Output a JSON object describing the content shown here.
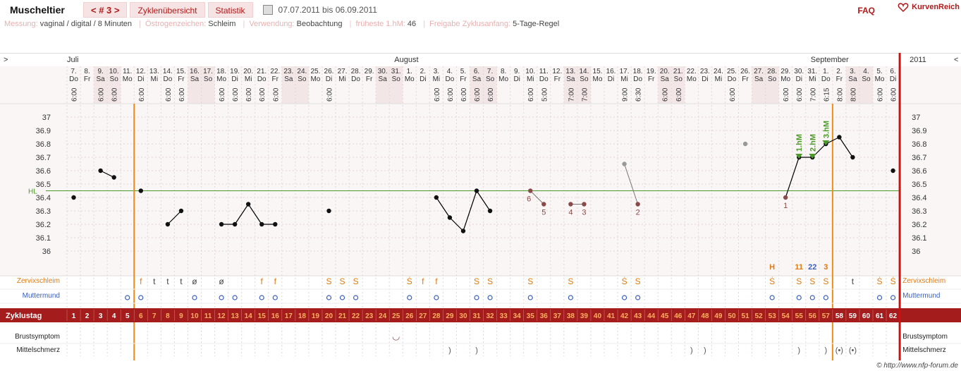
{
  "topbar": {
    "title": "Muscheltier",
    "cycle_label": "< # 3 >",
    "tab_overview": "Zyklenübersicht",
    "tab_stats": "Statistik",
    "date_range": "07.07.2011 bis 06.09.2011",
    "faq": "FAQ",
    "logo": "KurvenReich"
  },
  "info": {
    "messung_label": "Messung:",
    "messung": "vaginal / digital / 8 Minuten",
    "oestrogen_label": "Östrogenzeichen:",
    "oestrogen": "Schleim",
    "verwendung_label": "Verwendung:",
    "verwendung": "Beobachtung",
    "hm_label": "früheste 1.hM:",
    "hm": "46",
    "freigabe_label": "Freigabe Zyklusanfang:",
    "freigabe": "5-Tage-Regel"
  },
  "labels": {
    "nav_left": ">",
    "nav_right": "<",
    "year": "2011",
    "hl": "HL",
    "zervix": "Zervixschleim",
    "muttermund": "Muttermund",
    "zyklustag": "Zyklustag",
    "brust": "Brustsymptom",
    "mittel": "Mittelschmerz",
    "copyright": "© http://www.nfp-forum.de"
  },
  "months": [
    {
      "name": "Juli",
      "day_index": 0
    },
    {
      "name": "August",
      "day_index": 25
    },
    {
      "name": "September",
      "day_index": 56
    }
  ],
  "colors": {
    "accent": "#b01a1a",
    "weekend": "#f3e6e6",
    "coverline": "#4c9a2a",
    "cycle_marker": "#f08a1a",
    "month_end": "#cc1111",
    "zyklustag_bar": "#a51c1c",
    "grid": "#e0d6d6",
    "point": "#111111",
    "excluded_point": "#8a4a4a"
  },
  "chart_data": {
    "type": "line",
    "title": "",
    "ylim": [
      36.0,
      37.0
    ],
    "yticks": [
      36,
      36.1,
      36.2,
      36.3,
      36.4,
      36.5,
      36.6,
      36.7,
      36.8,
      36.9,
      37
    ],
    "coverline": 36.45,
    "days": [
      {
        "d": "7.",
        "w": "Do",
        "t": "6:00"
      },
      {
        "d": "8.",
        "w": "Fr",
        "t": ""
      },
      {
        "d": "9.",
        "w": "Sa",
        "t": "6:00"
      },
      {
        "d": "10.",
        "w": "So",
        "t": "6:00"
      },
      {
        "d": "11.",
        "w": "Mo",
        "t": ""
      },
      {
        "d": "12.",
        "w": "Di",
        "t": "6:00"
      },
      {
        "d": "13.",
        "w": "Mi",
        "t": ""
      },
      {
        "d": "14.",
        "w": "Do",
        "t": "6:00"
      },
      {
        "d": "15.",
        "w": "Fr",
        "t": "6:00"
      },
      {
        "d": "16.",
        "w": "Sa",
        "t": ""
      },
      {
        "d": "17.",
        "w": "So",
        "t": ""
      },
      {
        "d": "18.",
        "w": "Mo",
        "t": "6:00"
      },
      {
        "d": "19.",
        "w": "Di",
        "t": "6:00"
      },
      {
        "d": "20.",
        "w": "Mi",
        "t": "6:00"
      },
      {
        "d": "21.",
        "w": "Do",
        "t": "6:00"
      },
      {
        "d": "22.",
        "w": "Fr",
        "t": "6:00"
      },
      {
        "d": "23.",
        "w": "Sa",
        "t": ""
      },
      {
        "d": "24.",
        "w": "So",
        "t": ""
      },
      {
        "d": "25.",
        "w": "Mo",
        "t": ""
      },
      {
        "d": "26.",
        "w": "Di",
        "t": "6:00"
      },
      {
        "d": "27.",
        "w": "Mi",
        "t": ""
      },
      {
        "d": "28.",
        "w": "Do",
        "t": ""
      },
      {
        "d": "29.",
        "w": "Fr",
        "t": ""
      },
      {
        "d": "30.",
        "w": "Sa",
        "t": ""
      },
      {
        "d": "31.",
        "w": "So",
        "t": ""
      },
      {
        "d": "1.",
        "w": "Mo",
        "t": ""
      },
      {
        "d": "2.",
        "w": "Di",
        "t": ""
      },
      {
        "d": "3.",
        "w": "Mi",
        "t": "6:00"
      },
      {
        "d": "4.",
        "w": "Do",
        "t": "6:00"
      },
      {
        "d": "5.",
        "w": "Fr",
        "t": "6:00"
      },
      {
        "d": "6.",
        "w": "Sa",
        "t": "6:00"
      },
      {
        "d": "7.",
        "w": "So",
        "t": "6:00"
      },
      {
        "d": "8.",
        "w": "Mo",
        "t": ""
      },
      {
        "d": "9.",
        "w": "Di",
        "t": ""
      },
      {
        "d": "10.",
        "w": "Mi",
        "t": "6:00"
      },
      {
        "d": "11.",
        "w": "Do",
        "t": "5:00"
      },
      {
        "d": "12.",
        "w": "Fr",
        "t": ""
      },
      {
        "d": "13.",
        "w": "Sa",
        "t": "7:00"
      },
      {
        "d": "14.",
        "w": "So",
        "t": "7:00"
      },
      {
        "d": "15.",
        "w": "Mo",
        "t": ""
      },
      {
        "d": "16.",
        "w": "Di",
        "t": ""
      },
      {
        "d": "17.",
        "w": "Mi",
        "t": "9:00"
      },
      {
        "d": "18.",
        "w": "Do",
        "t": "6:30"
      },
      {
        "d": "19.",
        "w": "Fr",
        "t": ""
      },
      {
        "d": "20.",
        "w": "Sa",
        "t": "6:00"
      },
      {
        "d": "21.",
        "w": "So",
        "t": "6:00"
      },
      {
        "d": "22.",
        "w": "Mo",
        "t": ""
      },
      {
        "d": "23.",
        "w": "Di",
        "t": ""
      },
      {
        "d": "24.",
        "w": "Mi",
        "t": ""
      },
      {
        "d": "25.",
        "w": "Do",
        "t": "6:00"
      },
      {
        "d": "26.",
        "w": "Fr",
        "t": ""
      },
      {
        "d": "27.",
        "w": "Sa",
        "t": ""
      },
      {
        "d": "28.",
        "w": "So",
        "t": ""
      },
      {
        "d": "29.",
        "w": "Mo",
        "t": "6:00"
      },
      {
        "d": "30.",
        "w": "Di",
        "t": "6:00"
      },
      {
        "d": "31.",
        "w": "Mi",
        "t": "7:00"
      },
      {
        "d": "1.",
        "w": "Do",
        "t": "6:15"
      },
      {
        "d": "2.",
        "w": "Fr",
        "t": "8:00"
      },
      {
        "d": "3.",
        "w": "Sa",
        "t": "8:00"
      },
      {
        "d": "4.",
        "w": "So",
        "t": ""
      },
      {
        "d": "5.",
        "w": "Mo",
        "t": "6:00"
      },
      {
        "d": "6.",
        "w": "Di",
        "t": "6:00"
      }
    ],
    "weekend_days": [
      2,
      3,
      9,
      10,
      16,
      17,
      23,
      24,
      30,
      31,
      37,
      38,
      44,
      45,
      51,
      52,
      58,
      59
    ],
    "series": [
      {
        "values": [
          {
            "i": 0,
            "v": 36.4
          }
        ]
      },
      {
        "values": [
          {
            "i": 2,
            "v": 36.6
          },
          {
            "i": 3,
            "v": 36.55
          }
        ]
      },
      {
        "values": [
          {
            "i": 5,
            "v": 36.45
          }
        ]
      },
      {
        "values": [
          {
            "i": 7,
            "v": 36.2
          },
          {
            "i": 8,
            "v": 36.3
          }
        ]
      },
      {
        "values": [
          {
            "i": 11,
            "v": 36.2
          },
          {
            "i": 12,
            "v": 36.2
          },
          {
            "i": 13,
            "v": 36.35
          },
          {
            "i": 14,
            "v": 36.2
          },
          {
            "i": 15,
            "v": 36.2
          }
        ]
      },
      {
        "values": [
          {
            "i": 19,
            "v": 36.3
          }
        ]
      },
      {
        "values": [
          {
            "i": 27,
            "v": 36.4
          },
          {
            "i": 28,
            "v": 36.25
          },
          {
            "i": 29,
            "v": 36.15
          },
          {
            "i": 30,
            "v": 36.45
          },
          {
            "i": 31,
            "v": 36.3
          }
        ]
      },
      {
        "values": [
          {
            "i": 53,
            "v": 36.4
          },
          {
            "i": 54,
            "v": 36.7
          },
          {
            "i": 55,
            "v": 36.7
          },
          {
            "i": 56,
            "v": 36.8
          },
          {
            "i": 57,
            "v": 36.85
          },
          {
            "i": 58,
            "v": 36.7
          }
        ]
      },
      {
        "values": [
          {
            "i": 61,
            "v": 36.6
          }
        ]
      }
    ],
    "excluded_series": [
      {
        "values": [
          {
            "i": 34,
            "v": 36.45
          },
          {
            "i": 35,
            "v": 36.35
          }
        ]
      },
      {
        "values": [
          {
            "i": 37,
            "v": 36.35
          },
          {
            "i": 38,
            "v": 36.35
          }
        ]
      },
      {
        "values": [
          {
            "i": 41,
            "v": 36.65
          },
          {
            "i": 42,
            "v": 36.35
          }
        ]
      },
      {
        "values": [
          {
            "i": 50,
            "v": 36.8
          }
        ]
      }
    ],
    "point_labels": [
      {
        "i": 34,
        "text": "6",
        "pos": "below"
      },
      {
        "i": 35,
        "text": "5",
        "pos": "below"
      },
      {
        "i": 37,
        "text": "4",
        "pos": "below"
      },
      {
        "i": 38,
        "text": "3",
        "pos": "below"
      },
      {
        "i": 42,
        "text": "2",
        "pos": "below"
      },
      {
        "i": 53,
        "text": "1",
        "pos": "below"
      }
    ],
    "hm_markers": [
      {
        "i": 54,
        "text": "1.hM"
      },
      {
        "i": 55,
        "text": "2.hM"
      },
      {
        "i": 56,
        "text": "3.hM"
      }
    ],
    "cycle_start_index": 5,
    "cycle_end_index": 56,
    "zervix": [
      {
        "i": 5,
        "s": "f"
      },
      {
        "i": 6,
        "s": "t"
      },
      {
        "i": 7,
        "s": "t"
      },
      {
        "i": 8,
        "s": "t"
      },
      {
        "i": 9,
        "s": "ø"
      },
      {
        "i": 11,
        "s": "ø"
      },
      {
        "i": 14,
        "s": "f"
      },
      {
        "i": 15,
        "s": "f"
      },
      {
        "i": 19,
        "s": "S"
      },
      {
        "i": 20,
        "s": "S"
      },
      {
        "i": 21,
        "s": "S"
      },
      {
        "i": 25,
        "s": "Ṡ"
      },
      {
        "i": 26,
        "s": "f"
      },
      {
        "i": 27,
        "s": "f"
      },
      {
        "i": 30,
        "s": "S"
      },
      {
        "i": 31,
        "s": "S"
      },
      {
        "i": 34,
        "s": "S"
      },
      {
        "i": 37,
        "s": "S"
      },
      {
        "i": 41,
        "s": "Ṡ"
      },
      {
        "i": 42,
        "s": "S"
      },
      {
        "i": 52,
        "s": "Ṡ"
      },
      {
        "i": 54,
        "s": "S"
      },
      {
        "i": 55,
        "s": "S"
      },
      {
        "i": 56,
        "s": "S"
      },
      {
        "i": 58,
        "s": "t"
      },
      {
        "i": 60,
        "s": "Ṡ"
      },
      {
        "i": 61,
        "s": "Ṡ"
      }
    ],
    "zervix_top": [
      {
        "i": 52,
        "text": "H",
        "color": "#e07a10"
      },
      {
        "i": 54,
        "text": "11",
        "color": "#e07a10"
      },
      {
        "i": 55,
        "text": "22",
        "color": "#3a5fbf"
      },
      {
        "i": 56,
        "text": "3",
        "color": "#e07a10"
      }
    ],
    "muttermund": [
      4,
      5,
      9,
      11,
      12,
      14,
      15,
      19,
      20,
      21,
      25,
      27,
      30,
      31,
      34,
      37,
      41,
      42,
      52,
      54,
      55,
      56,
      60,
      61
    ],
    "brust": [
      {
        "i": 24,
        "s": "◡"
      }
    ],
    "mittel": [
      {
        "i": 28,
        "s": ")"
      },
      {
        "i": 30,
        "s": ")"
      },
      {
        "i": 46,
        "s": ")"
      },
      {
        "i": 47,
        "s": ")"
      },
      {
        "i": 54,
        "s": ")"
      },
      {
        "i": 56,
        "s": ")"
      },
      {
        "i": 57,
        "s": "(•)"
      },
      {
        "i": 58,
        "s": "(•)"
      }
    ]
  }
}
